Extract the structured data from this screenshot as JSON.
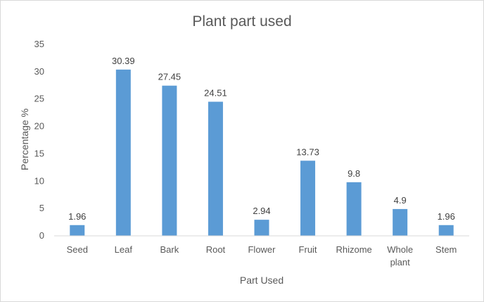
{
  "chart_data": {
    "type": "bar",
    "title": "Plant part used",
    "xlabel": "Part Used",
    "ylabel": "Percentage %",
    "categories": [
      "Seed",
      "Leaf",
      "Bark",
      "Root",
      "Flower",
      "Fruit",
      "Rhizome",
      "Whole plant",
      "Stem"
    ],
    "category_lines": [
      [
        "Seed"
      ],
      [
        "Leaf"
      ],
      [
        "Bark"
      ],
      [
        "Root"
      ],
      [
        "Flower"
      ],
      [
        "Fruit"
      ],
      [
        "Rhizome"
      ],
      [
        "Whole",
        "plant"
      ],
      [
        "Stem"
      ]
    ],
    "values": [
      1.96,
      30.39,
      27.45,
      24.51,
      2.94,
      13.73,
      9.8,
      4.9,
      1.96
    ],
    "data_labels": [
      "1.96",
      "30.39",
      "27.45",
      "24.51",
      "2.94",
      "13.73",
      "9.8",
      "4.9",
      "1.96"
    ],
    "ylim": [
      0,
      35
    ],
    "yticks": [
      "0",
      "5",
      "10",
      "15",
      "20",
      "25",
      "30",
      "35"
    ],
    "grid": false,
    "legend": "none",
    "bar_color": "#5b9bd5"
  }
}
